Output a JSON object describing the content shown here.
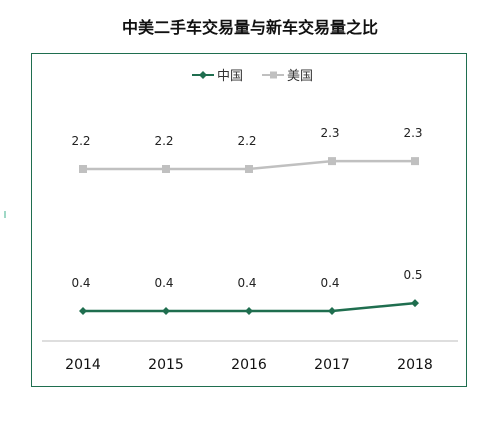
{
  "chart_data": {
    "type": "line",
    "title": "中美二手车交易量与新车交易量之比",
    "categories": [
      "2014",
      "2015",
      "2016",
      "2017",
      "2018"
    ],
    "series": [
      {
        "name": "中国",
        "values": [
          0.4,
          0.4,
          0.4,
          0.4,
          0.5
        ],
        "color": "#1f6e4f",
        "marker": "diamond",
        "labels": [
          "0.4",
          "0.4",
          "0.4",
          "0.4",
          "0.5"
        ]
      },
      {
        "name": "美国",
        "values": [
          2.2,
          2.2,
          2.2,
          2.3,
          2.3
        ],
        "color": "#c0c0c0",
        "marker": "square",
        "labels": [
          "2.2",
          "2.2",
          "2.2",
          "2.3",
          "2.3"
        ]
      }
    ],
    "legend": "top-center",
    "grid": false
  }
}
